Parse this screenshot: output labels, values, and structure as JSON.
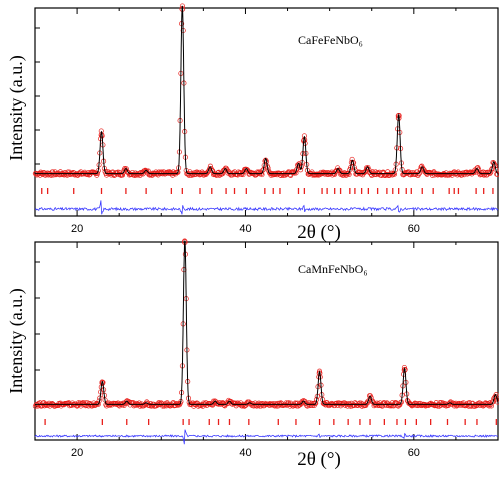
{
  "chart_data": [
    {
      "type": "scatter",
      "title": "",
      "sample_label": "CaFeFeNbO₆",
      "xlabel": "2θ (°)",
      "ylabel": "Intensity (a.u.)",
      "xlim": [
        15,
        70
      ],
      "x_ticks": [
        20,
        40,
        60
      ],
      "baseline": 5,
      "peaks": [
        {
          "x": 22.9,
          "y": 25
        },
        {
          "x": 25.8,
          "y": 3
        },
        {
          "x": 28.2,
          "y": 2
        },
        {
          "x": 32.5,
          "y": 100
        },
        {
          "x": 35.8,
          "y": 4
        },
        {
          "x": 37.6,
          "y": 3
        },
        {
          "x": 40.1,
          "y": 3
        },
        {
          "x": 42.4,
          "y": 9
        },
        {
          "x": 46.3,
          "y": 6
        },
        {
          "x": 47.0,
          "y": 22
        },
        {
          "x": 51.0,
          "y": 3
        },
        {
          "x": 52.7,
          "y": 8
        },
        {
          "x": 54.5,
          "y": 4
        },
        {
          "x": 58.2,
          "y": 35
        },
        {
          "x": 61.0,
          "y": 4
        },
        {
          "x": 67.5,
          "y": 3
        },
        {
          "x": 69.5,
          "y": 7
        }
      ],
      "tick_marks": [
        15.8,
        16.5,
        19.6,
        22.9,
        25.8,
        28.2,
        31.2,
        32.5,
        34.6,
        36.0,
        37.7,
        38.7,
        40.1,
        42.3,
        43.3,
        44.1,
        46.3,
        47.0,
        49.1,
        49.7,
        50.6,
        51.3,
        52.4,
        53.0,
        53.8,
        54.6,
        55.7,
        56.8,
        57.5,
        58.2,
        59.1,
        59.7,
        61.0,
        62.3,
        64.2,
        64.8,
        65.3,
        67.4,
        68.3,
        69.4
      ],
      "difference_features": [
        {
          "x": 22.9,
          "y": 4
        },
        {
          "x": 32.5,
          "y": -3
        },
        {
          "x": 47.0,
          "y": 2
        },
        {
          "x": 58.2,
          "y": 2
        }
      ],
      "series": [
        {
          "name": "observed",
          "color": "#e8201c",
          "marker": "open-circle"
        },
        {
          "name": "calculated",
          "color": "#000000"
        },
        {
          "name": "Bragg positions",
          "color": "#e8201c"
        },
        {
          "name": "difference",
          "color": "#3a3aff"
        }
      ]
    },
    {
      "type": "scatter",
      "title": "",
      "sample_label": "CaMnFeNbO₆",
      "xlabel": "2θ (°)",
      "ylabel": "Intensity (a.u.)",
      "xlim": [
        15,
        70
      ],
      "x_ticks": [
        20,
        40,
        60
      ],
      "baseline": 4,
      "peaks": [
        {
          "x": 23.0,
          "y": 14
        },
        {
          "x": 25.9,
          "y": 2
        },
        {
          "x": 28.2,
          "y": 1
        },
        {
          "x": 32.8,
          "y": 100
        },
        {
          "x": 36.4,
          "y": 2
        },
        {
          "x": 38.1,
          "y": 2
        },
        {
          "x": 40.5,
          "y": 1
        },
        {
          "x": 46.9,
          "y": 2
        },
        {
          "x": 48.8,
          "y": 20
        },
        {
          "x": 54.8,
          "y": 5
        },
        {
          "x": 58.9,
          "y": 22
        },
        {
          "x": 64.3,
          "y": 1
        },
        {
          "x": 69.7,
          "y": 6
        }
      ],
      "tick_marks": [
        16.2,
        23.0,
        25.9,
        28.5,
        32.6,
        33.3,
        35.7,
        36.8,
        38.1,
        40.4,
        43.9,
        46.0,
        48.8,
        50.5,
        52.2,
        53.6,
        54.8,
        56.5,
        58.0,
        59.0,
        60.3,
        62.0,
        64.0,
        66.1,
        67.5,
        69.8
      ],
      "difference_features": [
        {
          "x": 32.8,
          "y": -6
        },
        {
          "x": 48.8,
          "y": 1
        },
        {
          "x": 58.9,
          "y": -2
        }
      ],
      "series": [
        {
          "name": "observed",
          "color": "#e8201c",
          "marker": "open-circle"
        },
        {
          "name": "calculated",
          "color": "#000000"
        },
        {
          "name": "Bragg positions",
          "color": "#e8201c"
        },
        {
          "name": "difference",
          "color": "#3a3aff"
        }
      ]
    }
  ]
}
